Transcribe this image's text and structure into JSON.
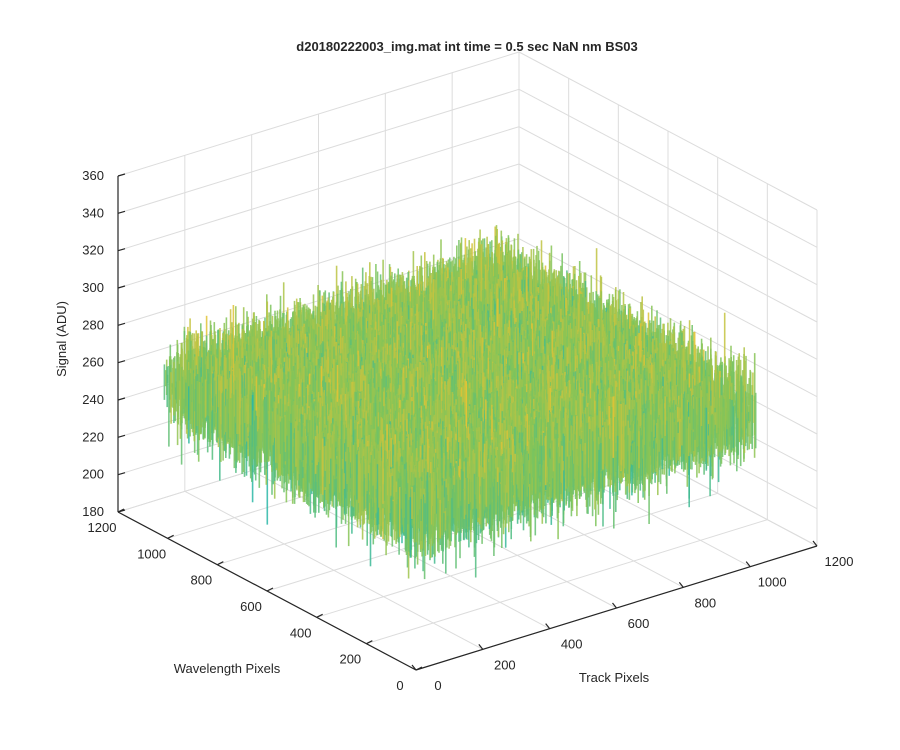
{
  "chart_data": {
    "type": "surface",
    "title": "d20180222003_img.mat int time = 0.5 sec  NaN nm BS03",
    "xlabel": "Track Pixels",
    "ylabel": "Wavelength Pixels",
    "zlabel": "Signal (ADU)",
    "xlim": [
      0,
      1200
    ],
    "ylim": [
      0,
      1200
    ],
    "zlim": [
      180,
      360
    ],
    "x_ticks": [
      "0",
      "200",
      "400",
      "600",
      "800",
      "1000",
      "1200"
    ],
    "y_ticks": [
      "0",
      "200",
      "400",
      "600",
      "800",
      "1000",
      "1200"
    ],
    "z_ticks": [
      "180",
      "200",
      "220",
      "240",
      "260",
      "280",
      "300",
      "320",
      "340",
      "360"
    ],
    "data_extent": {
      "x": [
        0,
        1024
      ],
      "y": [
        0,
        1024
      ]
    },
    "signal_mean": 262,
    "signal_range_typical": [
      220,
      300
    ],
    "signal_range_extreme": [
      190,
      345
    ],
    "grid": true,
    "colormap": "parula",
    "colors": {
      "low": "#1fb5b0",
      "mid": "#7fc45a",
      "high": "#f0c330"
    }
  }
}
